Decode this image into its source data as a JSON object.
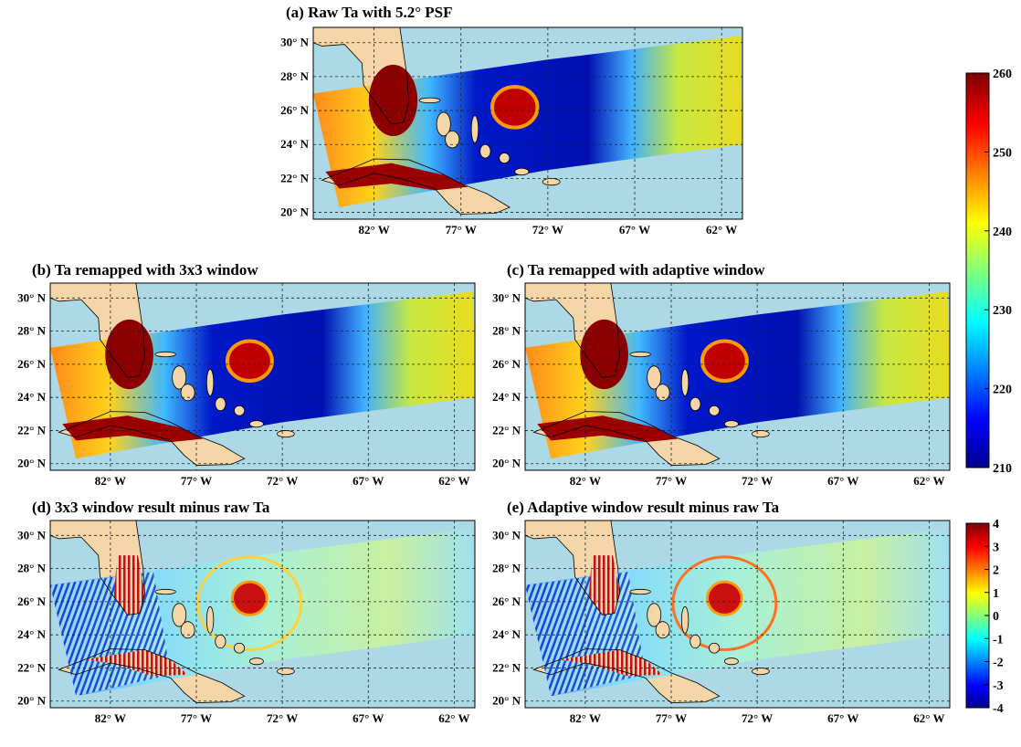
{
  "panels": [
    {
      "title": "(a) Raw Ta with 5.2° PSF",
      "xlim": [
        -85.5,
        -60.8
      ],
      "ylim": [
        19.6,
        30.9
      ],
      "xticks": [
        {
          "value": -82,
          "label": "82° W"
        },
        {
          "value": -77,
          "label": "77° W"
        },
        {
          "value": -72,
          "label": "72° W"
        },
        {
          "value": -67,
          "label": "67° W"
        },
        {
          "value": -62,
          "label": "62° W"
        }
      ],
      "yticks": [
        {
          "value": 20,
          "label": "20° N"
        },
        {
          "value": 22,
          "label": "22° N"
        },
        {
          "value": 24,
          "label": "24° N"
        },
        {
          "value": 26,
          "label": "26° N"
        },
        {
          "value": 28,
          "label": "28° N"
        },
        {
          "value": 30,
          "label": "30° N"
        }
      ]
    },
    {
      "title": "(b) Ta remapped with 3x3 window",
      "xlim": [
        -85.5,
        -60.8
      ],
      "ylim": [
        19.6,
        30.9
      ],
      "xticks": [
        {
          "value": -82,
          "label": "82° W"
        },
        {
          "value": -77,
          "label": "77° W"
        },
        {
          "value": -72,
          "label": "72° W"
        },
        {
          "value": -67,
          "label": "67° W"
        },
        {
          "value": -62,
          "label": "62° W"
        }
      ],
      "yticks": [
        {
          "value": 20,
          "label": "20° N"
        },
        {
          "value": 22,
          "label": "22° N"
        },
        {
          "value": 24,
          "label": "24° N"
        },
        {
          "value": 26,
          "label": "26° N"
        },
        {
          "value": 28,
          "label": "28° N"
        },
        {
          "value": 30,
          "label": "30° N"
        }
      ]
    },
    {
      "title": "(c) Ta remapped with adaptive window",
      "xlim": [
        -85.5,
        -60.8
      ],
      "ylim": [
        19.6,
        30.9
      ],
      "xticks": [
        {
          "value": -82,
          "label": "82° W"
        },
        {
          "value": -77,
          "label": "77° W"
        },
        {
          "value": -72,
          "label": "72° W"
        },
        {
          "value": -67,
          "label": "67° W"
        },
        {
          "value": -62,
          "label": "62° W"
        }
      ],
      "yticks": [
        {
          "value": 20,
          "label": "20° N"
        },
        {
          "value": 22,
          "label": "22° N"
        },
        {
          "value": 24,
          "label": "24° N"
        },
        {
          "value": 26,
          "label": "26° N"
        },
        {
          "value": 28,
          "label": "28° N"
        },
        {
          "value": 30,
          "label": "30° N"
        }
      ]
    },
    {
      "title": "(d) 3x3 window result minus raw Ta",
      "xlim": [
        -85.5,
        -60.8
      ],
      "ylim": [
        19.6,
        30.9
      ],
      "xticks": [
        {
          "value": -82,
          "label": "82° W"
        },
        {
          "value": -77,
          "label": "77° W"
        },
        {
          "value": -72,
          "label": "72° W"
        },
        {
          "value": -67,
          "label": "67° W"
        },
        {
          "value": -62,
          "label": "62° W"
        }
      ],
      "yticks": [
        {
          "value": 20,
          "label": "20° N"
        },
        {
          "value": 22,
          "label": "22° N"
        },
        {
          "value": 24,
          "label": "24° N"
        },
        {
          "value": 26,
          "label": "26° N"
        },
        {
          "value": 28,
          "label": "28° N"
        },
        {
          "value": 30,
          "label": "30° N"
        }
      ]
    },
    {
      "title": "(e) Adaptive window result minus raw Ta",
      "xlim": [
        -85.5,
        -60.8
      ],
      "ylim": [
        19.6,
        30.9
      ],
      "xticks": [
        {
          "value": -82,
          "label": "82° W"
        },
        {
          "value": -77,
          "label": "77° W"
        },
        {
          "value": -72,
          "label": "72° W"
        },
        {
          "value": -67,
          "label": "67° W"
        },
        {
          "value": -62,
          "label": "62° W"
        }
      ],
      "yticks": [
        {
          "value": 20,
          "label": "20° N"
        },
        {
          "value": 22,
          "label": "22° N"
        },
        {
          "value": 24,
          "label": "24° N"
        },
        {
          "value": 26,
          "label": "26° N"
        },
        {
          "value": 28,
          "label": "28° N"
        },
        {
          "value": 30,
          "label": "30° N"
        }
      ]
    }
  ],
  "colorbars": [
    {
      "lim": [
        210,
        260
      ],
      "ticks": [
        210,
        220,
        230,
        240,
        250,
        260
      ]
    },
    {
      "lim": [
        -4,
        4
      ],
      "ticks": [
        -4,
        -3,
        -2,
        -1,
        0,
        1,
        2,
        3,
        4
      ]
    }
  ]
}
